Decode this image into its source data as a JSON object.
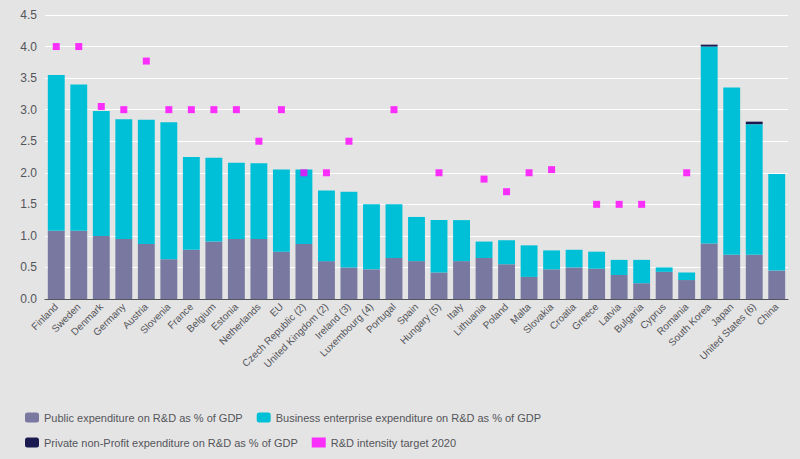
{
  "chart_data": {
    "type": "bar",
    "stacked": true,
    "grid": true,
    "legend": "bottom",
    "categories": [
      "Finland",
      "Sweden",
      "Denmark",
      "Germany",
      "Austria",
      "Slovenia",
      "France",
      "Belgium",
      "Estonia",
      "Netherlands",
      "EU",
      "Czech Republic (2)",
      "United Kingdom (2)",
      "Ireland (3)",
      "Luxembourg (4)",
      "Portugal",
      "Spain",
      "Hungary (5)",
      "Italy",
      "Lithuania",
      "Poland",
      "Malta",
      "Slovakia",
      "Croatia",
      "Greece",
      "Latvia",
      "Bulgaria",
      "Cyprus",
      "Romania",
      "South Korea",
      "Japan",
      "United States (6)",
      "China"
    ],
    "series": [
      {
        "name": "Public expenditure on R&D as % of GDP",
        "type": "bar",
        "color": "#7878a0",
        "values": [
          1.08,
          1.08,
          1.0,
          0.95,
          0.87,
          0.63,
          0.78,
          0.91,
          0.95,
          0.95,
          0.75,
          0.87,
          0.6,
          0.5,
          0.47,
          0.65,
          0.6,
          0.42,
          0.6,
          0.65,
          0.55,
          0.35,
          0.47,
          0.5,
          0.48,
          0.38,
          0.25,
          0.43,
          0.3,
          0.88,
          0.7,
          0.7,
          0.45
        ]
      },
      {
        "name": "Business enterprise expenditure on R&D as % of GDP",
        "type": "bar",
        "color": "#00c0d8",
        "values": [
          2.47,
          2.32,
          1.98,
          1.9,
          1.97,
          2.17,
          1.47,
          1.33,
          1.21,
          1.2,
          1.3,
          1.18,
          1.12,
          1.2,
          1.03,
          0.85,
          0.7,
          0.83,
          0.65,
          0.26,
          0.38,
          0.5,
          0.3,
          0.28,
          0.27,
          0.24,
          0.37,
          0.07,
          0.12,
          3.12,
          2.65,
          2.07,
          1.53
        ]
      },
      {
        "name": "Private non-Profit expenditure on R&D as % of GDP",
        "type": "bar",
        "color": "#1a1a50",
        "values": [
          0.0,
          0.0,
          0.0,
          0.0,
          0.0,
          0.0,
          0.0,
          0.0,
          0.0,
          0.0,
          0.0,
          0.0,
          0.0,
          0.0,
          0.0,
          0.0,
          0.0,
          0.0,
          0.0,
          0.0,
          0.0,
          0.0,
          0.0,
          0.0,
          0.0,
          0.0,
          0.0,
          0.0,
          0.0,
          0.03,
          0.0,
          0.04,
          0.0
        ]
      },
      {
        "name": "R&D intensity target 2020",
        "type": "scatter",
        "marker": "square",
        "color": "#ff00ff",
        "values": [
          4.0,
          4.0,
          3.05,
          3.0,
          3.77,
          3.0,
          3.0,
          3.0,
          3.0,
          2.5,
          3.0,
          2.0,
          2.0,
          2.5,
          null,
          3.0,
          null,
          2.0,
          null,
          1.9,
          1.7,
          2.0,
          2.05,
          null,
          1.5,
          1.5,
          1.5,
          null,
          2.0,
          null,
          null,
          null,
          null
        ]
      }
    ],
    "ylim": [
      0,
      4.5
    ],
    "yticks": [
      {
        "value": 0,
        "label": "0.0"
      },
      0.5,
      {
        "value": 1,
        "label": "1.0"
      },
      1.5,
      {
        "value": 2,
        "label": "2.0"
      },
      2.5,
      {
        "value": 3,
        "label": "3.0"
      },
      3.5,
      {
        "value": 4,
        "label": "4.0"
      },
      4.5
    ]
  }
}
